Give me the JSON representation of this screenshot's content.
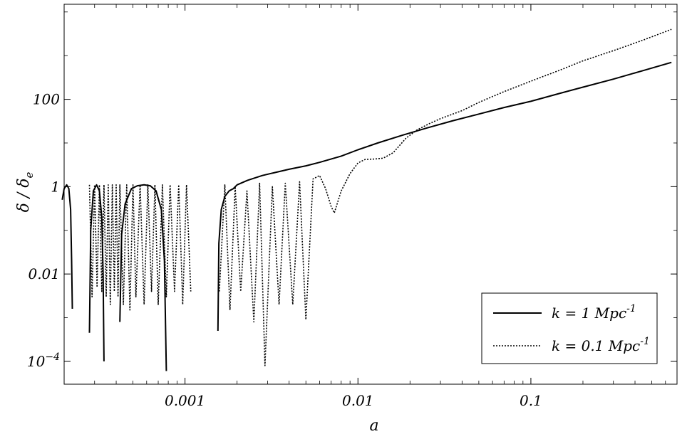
{
  "chart_data": {
    "type": "line",
    "xlabel": "a",
    "ylabel": "δ / δ",
    "ylabel_sub": "e",
    "x_scale": "log",
    "y_scale": "log",
    "xlim": [
      0.0002,
      0.7
    ],
    "ylim": [
      3e-05,
      15000
    ],
    "x_ticks": [
      {
        "value": 0.001,
        "label": "0.001"
      },
      {
        "value": 0.01,
        "label": "0.01"
      },
      {
        "value": 0.1,
        "label": "0.1"
      }
    ],
    "y_ticks": [
      {
        "value": 0.0001,
        "label": "10",
        "sup": "−4"
      },
      {
        "value": 0.01,
        "label": "0.01",
        "sup": ""
      },
      {
        "value": 1,
        "label": "1",
        "sup": ""
      },
      {
        "value": 100,
        "label": "100",
        "sup": ""
      }
    ],
    "legend_position": "bottom-right",
    "series": [
      {
        "name": "k = 1 Mpc",
        "name_sup": "-1",
        "style": "solid",
        "segments": [
          {
            "x": [
              0.000195,
              0.0002,
              0.000207,
              0.000213,
              0.000218,
              0.000221,
              0.000223
            ],
            "y": [
              0.5,
              0.9,
              1.1,
              0.9,
              0.3,
              0.02,
              0.0016
            ]
          },
          {
            "x": [
              0.00028,
              0.000285,
              0.000295,
              0.000308,
              0.00032,
              0.00033,
              0.000336,
              0.00034
            ],
            "y": [
              0.00045,
              0.1,
              0.8,
              1.1,
              0.8,
              0.2,
              0.01,
              0.0001
            ]
          },
          {
            "x": [
              0.00042,
              0.00043,
              0.00045,
              0.00049,
              0.00053,
              0.00058,
              0.00063,
              0.00068,
              0.00073,
              0.00076,
              0.00078
            ],
            "y": [
              0.0008,
              0.08,
              0.4,
              0.9,
              1.05,
              1.1,
              1.05,
              0.8,
              0.3,
              0.02,
              6e-05
            ]
          },
          {
            "x": [
              0.00155,
              0.00157,
              0.00162,
              0.0017,
              0.0018,
              0.0019,
              0.002,
              0.0023,
              0.0028,
              0.0033,
              0.004,
              0.005,
              0.006,
              0.008,
              0.01,
              0.013,
              0.018,
              0.025,
              0.035,
              0.05,
              0.07,
              0.1,
              0.15,
              0.2,
              0.3,
              0.45,
              0.65
            ],
            "y": [
              0.0005,
              0.05,
              0.3,
              0.6,
              0.8,
              0.9,
              1.1,
              1.4,
              1.8,
              2.1,
              2.5,
              3.0,
              3.6,
              5.0,
              7.0,
              10,
              15,
              22,
              32,
              46,
              65,
              90,
              140,
              190,
              290,
              460,
              700
            ]
          }
        ]
      },
      {
        "name": "k = 0.1 Mpc",
        "name_sup": "-1",
        "style": "dotted",
        "segments": [
          {
            "x": [
              0.00028,
              0.00029,
              0.0003,
              0.00031,
              0.00032,
              0.00033,
              0.00034,
              0.00035,
              0.00036,
              0.00037,
              0.00038,
              0.00039,
              0.0004,
              0.00041,
              0.00042,
              0.00044,
              0.00046,
              0.00048,
              0.0005,
              0.00052,
              0.00055,
              0.00058,
              0.00061,
              0.00064,
              0.00067,
              0.0007,
              0.00074,
              0.00078,
              0.00082,
              0.00087,
              0.00092,
              0.00097,
              0.00102,
              0.00108
            ],
            "y": [
              1.1,
              0.003,
              1.1,
              0.005,
              1.1,
              0.004,
              1.1,
              0.003,
              1.1,
              0.002,
              1.1,
              0.004,
              1.1,
              0.003,
              1.1,
              0.002,
              1.1,
              0.0015,
              1.1,
              0.003,
              1.1,
              0.002,
              1.1,
              0.004,
              1.1,
              0.002,
              1.1,
              0.003,
              1.1,
              0.004,
              1.1,
              0.002,
              1.1,
              0.004
            ]
          },
          {
            "x": [
              0.00158,
              0.0017,
              0.00182,
              0.00195,
              0.0021,
              0.00228,
              0.0025,
              0.0027,
              0.0029,
              0.0032,
              0.0035,
              0.0038,
              0.0042,
              0.0046,
              0.005,
              0.0055,
              0.006,
              0.0065,
              0.007,
              0.0073,
              0.008,
              0.009,
              0.01,
              0.011,
              0.0125,
              0.014,
              0.016,
              0.019,
              0.022,
              0.026,
              0.03,
              0.04,
              0.05,
              0.07,
              0.1,
              0.15,
              0.2,
              0.3,
              0.45,
              0.65
            ],
            "y": [
              0.004,
              1.1,
              0.0015,
              1.0,
              0.004,
              0.8,
              0.0008,
              1.2,
              8e-05,
              1.0,
              0.002,
              1.2,
              0.002,
              1.3,
              0.0009,
              1.5,
              1.8,
              0.9,
              0.35,
              0.25,
              0.8,
              2.0,
              3.5,
              4.2,
              4.3,
              4.5,
              6.0,
              13,
              20,
              28,
              36,
              55,
              85,
              150,
              260,
              480,
              760,
              1300,
              2300,
              4000
            ]
          }
        ]
      }
    ]
  }
}
